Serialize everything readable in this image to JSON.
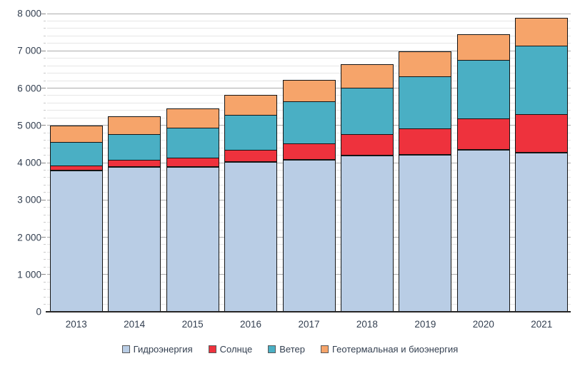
{
  "chart_data": {
    "type": "bar",
    "subtype": "stacked-vertical",
    "title": "",
    "xlabel": "",
    "ylabel": "",
    "categories": [
      "2013",
      "2014",
      "2015",
      "2016",
      "2017",
      "2018",
      "2019",
      "2020",
      "2021"
    ],
    "series": [
      {
        "name": "Гидроэнергия",
        "color": "#b9cde5",
        "values": [
          3790,
          3890,
          3890,
          4010,
          4070,
          4190,
          4220,
          4350,
          4270
        ]
      },
      {
        "name": "Солнце",
        "color": "#ee323d",
        "values": [
          140,
          200,
          255,
          330,
          445,
          570,
          705,
          845,
          1035
        ]
      },
      {
        "name": "Ветер",
        "color": "#4aafc4",
        "values": [
          645,
          715,
          830,
          960,
          1140,
          1270,
          1420,
          1590,
          1860
        ]
      },
      {
        "name": "Геотермальная и биоэнергия",
        "color": "#f6a46a",
        "values": [
          460,
          495,
          530,
          555,
          595,
          650,
          685,
          715,
          775
        ]
      }
    ],
    "stack_totals": [
      5035,
      5300,
      5505,
      5855,
      6250,
      6680,
      7030,
      7500,
      7940
    ],
    "ylim": [
      0,
      8000
    ],
    "y_major_step": 1000,
    "y_minor_step": 200,
    "y_tick_labels": [
      "0",
      "1 000",
      "2 000",
      "3 000",
      "4 000",
      "5 000",
      "6 000",
      "7 000",
      "8 000"
    ],
    "grid": "horizontal, major and minor lines on",
    "legend_position": "bottom-center",
    "bar_border_color": "#141414",
    "palette": {
      "background": "#ffffff",
      "grid_major": "#acacac",
      "grid_minor": "#e6e6e6",
      "axis_line": "#262626",
      "label_color": "#333f50"
    }
  }
}
